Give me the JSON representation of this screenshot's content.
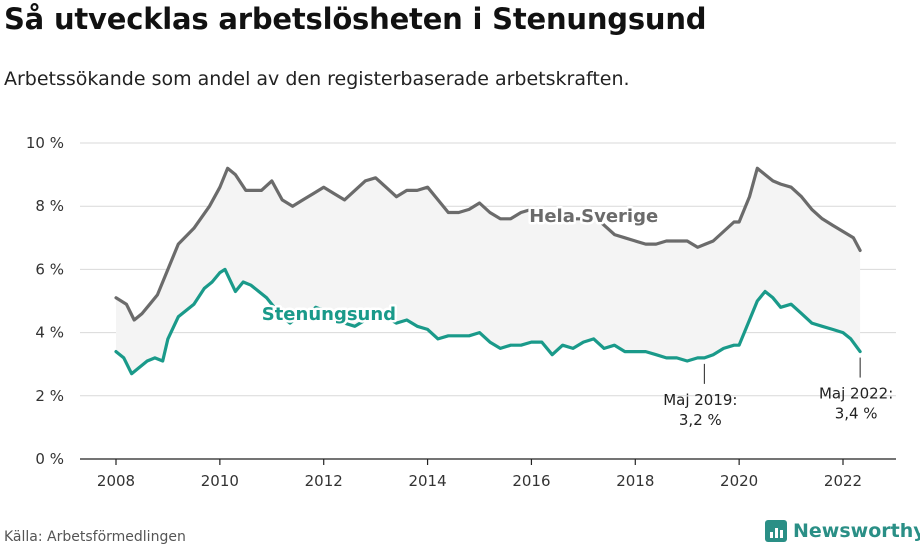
{
  "header": {
    "title": "Så utvecklas arbetslösheten i Stenungsund",
    "subtitle": "Arbetssökande som andel av den registerbaserade arbetskraften."
  },
  "footer": {
    "source": "Källa: Arbetsförmedlingen",
    "brand": "Newsworthy"
  },
  "colors": {
    "hela_sverige": "#6b6b6b",
    "stenungsund": "#1a9a8a",
    "band_fill": "#f4f4f4",
    "brand": "#2a8f86"
  },
  "chart_data": {
    "type": "line",
    "ylim": [
      0,
      10
    ],
    "xlim": [
      2007.5,
      2023.1
    ],
    "y_ticks": [
      0,
      2,
      4,
      6,
      8,
      10
    ],
    "y_tick_labels": [
      "0 %",
      "2 %",
      "4 %",
      "6 %",
      "8 %",
      "10 %"
    ],
    "x_ticks": [
      2008,
      2010,
      2012,
      2014,
      2016,
      2018,
      2020,
      2022
    ],
    "x_tick_labels": [
      "2008",
      "2010",
      "2012",
      "2014",
      "2016",
      "2018",
      "2020",
      "2022"
    ],
    "grid": true,
    "series": [
      {
        "name": "Hela Sverige",
        "x": [
          2008.0,
          2008.2,
          2008.35,
          2008.5,
          2008.65,
          2008.8,
          2009.0,
          2009.2,
          2009.5,
          2009.8,
          2010.0,
          2010.15,
          2010.3,
          2010.5,
          2010.8,
          2011.0,
          2011.2,
          2011.4,
          2011.6,
          2011.8,
          2012.0,
          2012.2,
          2012.4,
          2012.6,
          2012.8,
          2013.0,
          2013.2,
          2013.4,
          2013.6,
          2013.8,
          2014.0,
          2014.2,
          2014.4,
          2014.6,
          2014.8,
          2015.0,
          2015.2,
          2015.4,
          2015.6,
          2015.8,
          2016.0,
          2016.2,
          2016.4,
          2016.6,
          2016.8,
          2017.0,
          2017.2,
          2017.4,
          2017.6,
          2017.8,
          2018.0,
          2018.2,
          2018.4,
          2018.6,
          2018.8,
          2019.0,
          2019.2,
          2019.35,
          2019.5,
          2019.7,
          2019.9,
          2020.0,
          2020.2,
          2020.35,
          2020.5,
          2020.65,
          2020.8,
          2021.0,
          2021.2,
          2021.4,
          2021.6,
          2021.8,
          2022.0,
          2022.2,
          2022.33
        ],
        "values": [
          5.1,
          4.9,
          4.4,
          4.6,
          4.9,
          5.2,
          6.0,
          6.8,
          7.3,
          8.0,
          8.6,
          9.2,
          9.0,
          8.5,
          8.5,
          8.8,
          8.2,
          8.0,
          8.2,
          8.4,
          8.6,
          8.4,
          8.2,
          8.5,
          8.8,
          8.9,
          8.6,
          8.3,
          8.5,
          8.5,
          8.6,
          8.2,
          7.8,
          7.8,
          7.9,
          8.1,
          7.8,
          7.6,
          7.6,
          7.8,
          7.9,
          7.7,
          7.5,
          7.6,
          7.6,
          7.6,
          7.7,
          7.4,
          7.1,
          7.0,
          6.9,
          6.8,
          6.8,
          6.9,
          6.9,
          6.9,
          6.7,
          6.8,
          6.9,
          7.2,
          7.5,
          7.5,
          8.3,
          9.2,
          9.0,
          8.8,
          8.7,
          8.6,
          8.3,
          7.9,
          7.6,
          7.4,
          7.2,
          7.0,
          6.6
        ]
      },
      {
        "name": "Stenungsund",
        "x": [
          2008.0,
          2008.15,
          2008.3,
          2008.45,
          2008.6,
          2008.75,
          2008.9,
          2009.0,
          2009.2,
          2009.35,
          2009.5,
          2009.7,
          2009.85,
          2010.0,
          2010.1,
          2010.3,
          2010.45,
          2010.6,
          2010.75,
          2010.9,
          2011.0,
          2011.2,
          2011.35,
          2011.5,
          2011.7,
          2011.85,
          2012.0,
          2012.2,
          2012.4,
          2012.6,
          2012.8,
          2013.0,
          2013.2,
          2013.4,
          2013.6,
          2013.8,
          2014.0,
          2014.2,
          2014.4,
          2014.6,
          2014.8,
          2015.0,
          2015.2,
          2015.4,
          2015.6,
          2015.8,
          2016.0,
          2016.2,
          2016.4,
          2016.6,
          2016.8,
          2017.0,
          2017.2,
          2017.4,
          2017.6,
          2017.8,
          2018.0,
          2018.2,
          2018.4,
          2018.6,
          2018.8,
          2019.0,
          2019.2,
          2019.33,
          2019.5,
          2019.7,
          2019.9,
          2020.0,
          2020.2,
          2020.35,
          2020.5,
          2020.65,
          2020.8,
          2021.0,
          2021.2,
          2021.4,
          2021.6,
          2021.8,
          2022.0,
          2022.15,
          2022.33
        ],
        "values": [
          3.4,
          3.2,
          2.7,
          2.9,
          3.1,
          3.2,
          3.1,
          3.8,
          4.5,
          4.7,
          4.9,
          5.4,
          5.6,
          5.9,
          6.0,
          5.3,
          5.6,
          5.5,
          5.3,
          5.1,
          4.9,
          4.5,
          4.3,
          4.5,
          4.6,
          4.8,
          4.7,
          4.5,
          4.3,
          4.2,
          4.4,
          4.6,
          4.5,
          4.3,
          4.4,
          4.2,
          4.1,
          3.8,
          3.9,
          3.9,
          3.9,
          4.0,
          3.7,
          3.5,
          3.6,
          3.6,
          3.7,
          3.7,
          3.3,
          3.6,
          3.5,
          3.7,
          3.8,
          3.5,
          3.6,
          3.4,
          3.4,
          3.4,
          3.3,
          3.2,
          3.2,
          3.1,
          3.2,
          3.2,
          3.3,
          3.5,
          3.6,
          3.6,
          4.4,
          5.0,
          5.3,
          5.1,
          4.8,
          4.9,
          4.6,
          4.3,
          4.2,
          4.1,
          4.0,
          3.8,
          3.4
        ]
      }
    ],
    "series_labels": [
      {
        "text": "Hela Sverige",
        "x": 2017.2,
        "y": 7.5
      },
      {
        "text": "Stenungsund",
        "x": 2012.1,
        "y": 4.4
      }
    ],
    "annotations": [
      {
        "x": 2019.33,
        "y": 3.2,
        "line1": "Maj 2019:",
        "line2": "3,2 %"
      },
      {
        "x": 2022.33,
        "y": 3.4,
        "line1": "Maj 2022:",
        "line2": "3,4 %"
      }
    ]
  }
}
